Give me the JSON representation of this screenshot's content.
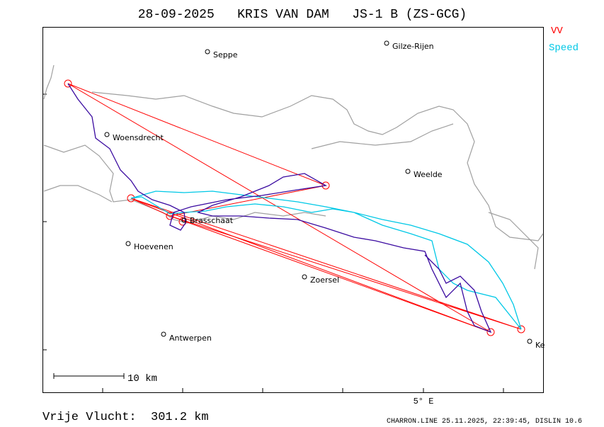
{
  "header": {
    "title": "28-09-2025   KRIS VAN DAM   JS-1 B (ZS-GCG)"
  },
  "legend": [
    {
      "label": "VV",
      "color": "#ff0000"
    },
    {
      "label": "Speed",
      "color": "#00c8e6"
    }
  ],
  "track_color": "#3a0aa0",
  "towns": [
    {
      "label": "Seppe"
    },
    {
      "label": "Gilze-Rijen"
    },
    {
      "label": "Woensdrecht"
    },
    {
      "label": "Weelde"
    },
    {
      "label": "Brasschaat"
    },
    {
      "label": "Hoevenen"
    },
    {
      "label": "Zoersel"
    },
    {
      "label": "Antwerpen"
    },
    {
      "label": "Ke"
    }
  ],
  "scale_label": "10 km",
  "axis_label": "5° E",
  "footer": {
    "distance": "Vrije Vlucht:  301.2 km",
    "credits": "CHARRON.LINE 25.11.2025, 22:39:45, DISLIN 10.6"
  }
}
